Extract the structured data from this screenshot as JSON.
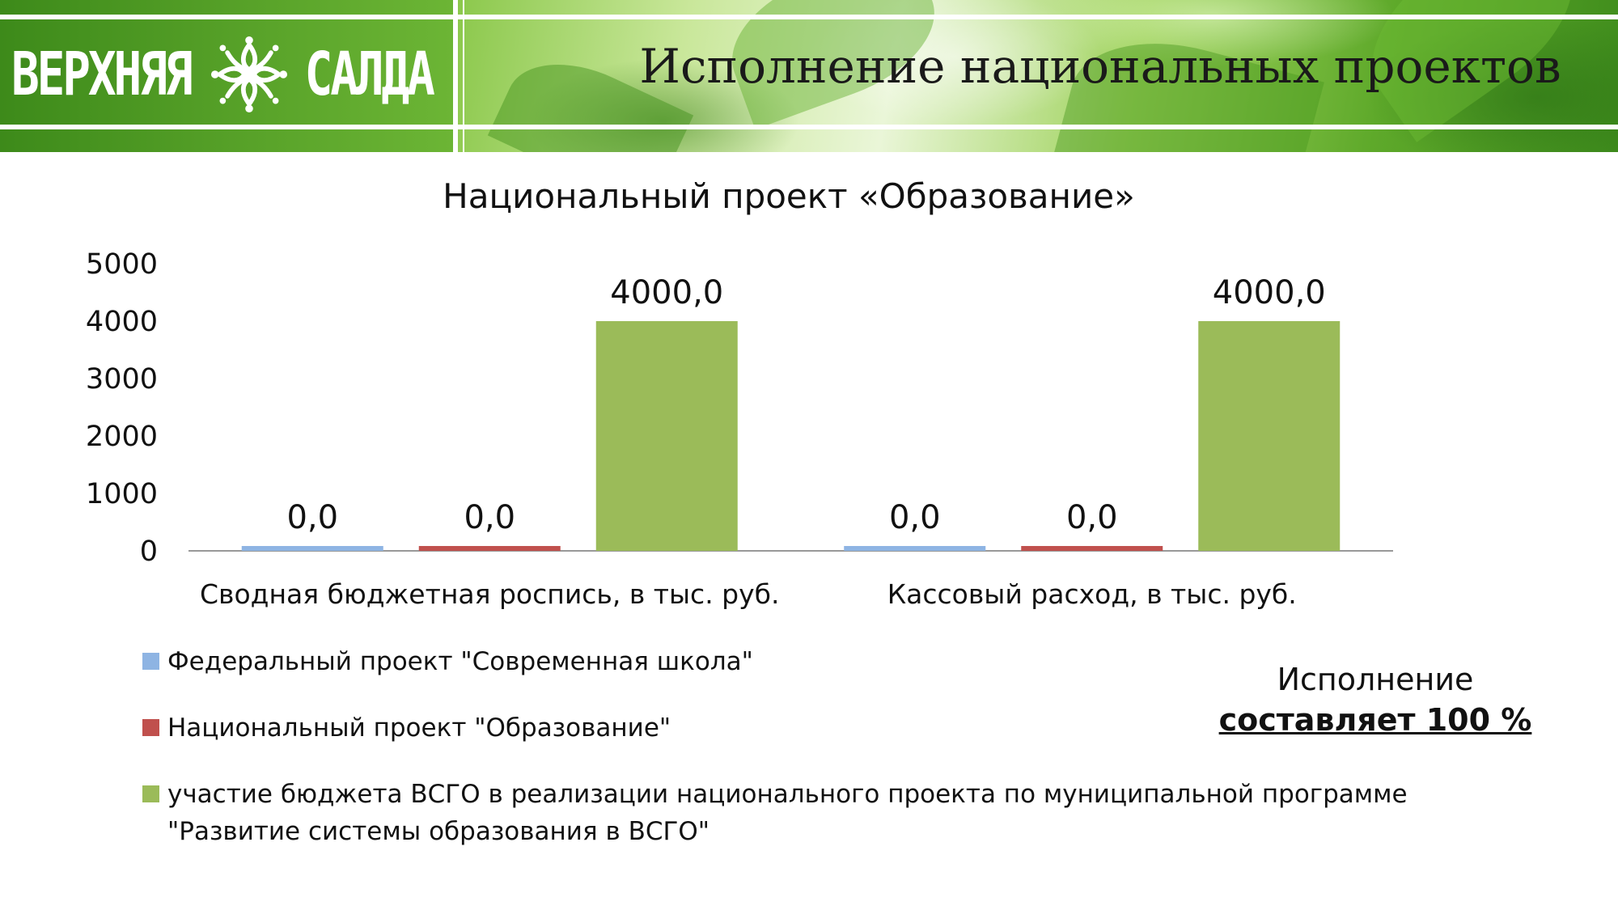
{
  "header": {
    "logo_left": "ВЕРХНЯЯ",
    "logo_right": "САЛДА",
    "logo_icon": "snowflake-emblem-icon",
    "title": "Исполнение национальных проектов"
  },
  "chart_data": {
    "type": "bar",
    "title": "Национальный проект «Образование»",
    "categories": [
      "Сводная бюджетная роспись, в тыс. руб.",
      "Кассовый расход, в тыс. руб."
    ],
    "series": [
      {
        "name": "Федеральный проект \"Современная школа\"",
        "color": "#8eb4e3",
        "values": [
          0,
          0
        ],
        "labels": [
          "0,0",
          "0,0"
        ]
      },
      {
        "name": "Национальный проект \"Образование\"",
        "color": "#c0504d",
        "values": [
          0,
          0
        ],
        "labels": [
          "0,0",
          "0,0"
        ]
      },
      {
        "name": "участие бюджета ВСГО в реализации национального проекта по муниципальной программе \"Развитие системы образования в ВСГО\"",
        "color": "#9bbb59",
        "values": [
          4000,
          4000
        ],
        "labels": [
          "4000,0",
          "4000,0"
        ]
      }
    ],
    "yticks": [
      "0",
      "1000",
      "2000",
      "3000",
      "4000",
      "5000"
    ],
    "ylim": [
      0,
      5000
    ],
    "grid": false,
    "legend_position": "bottom-left"
  },
  "execution": {
    "line1": "Исполнение",
    "line2": "составляет 100 %"
  }
}
